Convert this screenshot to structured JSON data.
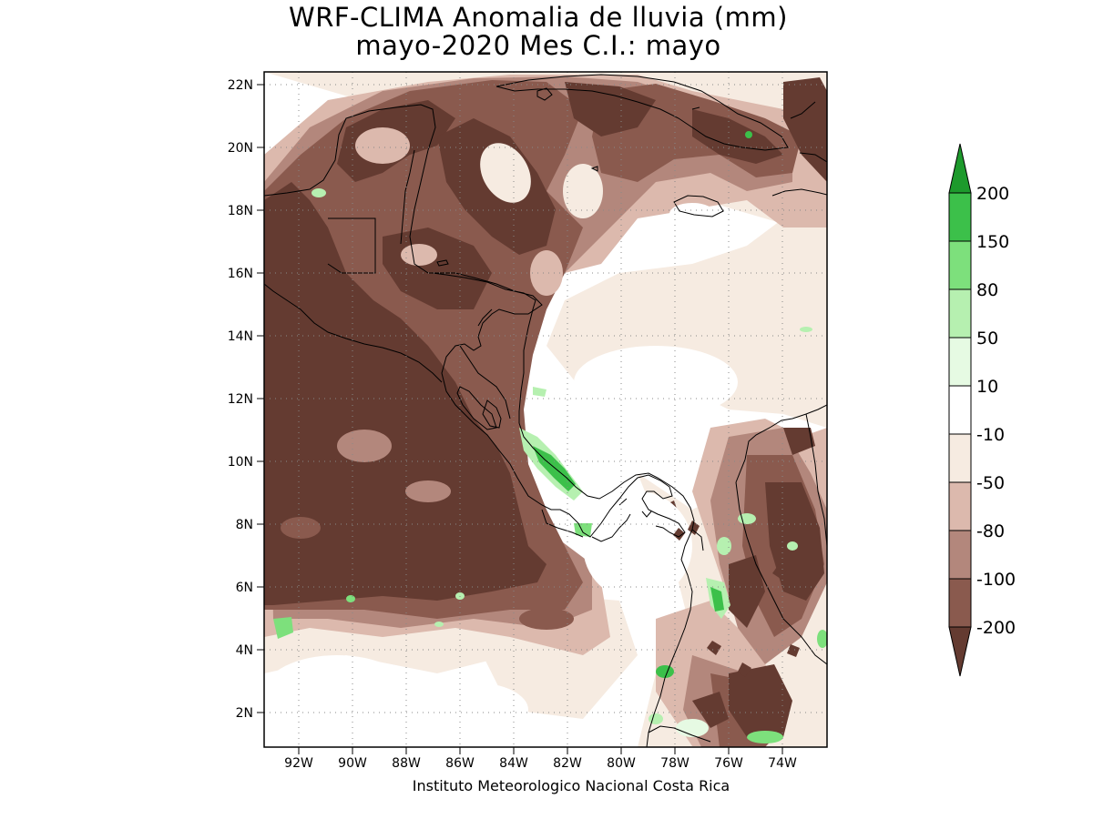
{
  "title": {
    "line1": "WRF-CLIMA Anomalia de lluvia (mm)",
    "line2": "mayo-2020 Mes C.I.: mayo"
  },
  "credit": "Instituto Meteorologico Nacional Costa Rica",
  "axes": {
    "lon_labels": [
      "92W",
      "90W",
      "88W",
      "86W",
      "84W",
      "82W",
      "80W",
      "78W",
      "76W",
      "74W"
    ],
    "lat_labels": [
      "22N",
      "20N",
      "18N",
      "16N",
      "14N",
      "12N",
      "10N",
      "8N",
      "6N",
      "4N",
      "2N"
    ]
  },
  "colorbar": {
    "labels": [
      "200",
      "150",
      "80",
      "50",
      "10",
      "-10",
      "-50",
      "-80",
      "-100",
      "-200"
    ],
    "colors": [
      "#1d9a2c",
      "#3cc04a",
      "#7de07c",
      "#b6f0b0",
      "#e6fae3",
      "#ffffff",
      "#f6ebe1",
      "#dcb9ad",
      "#b3877c",
      "#8a5a4e",
      "#643b31"
    ]
  },
  "palette": {
    "strong_dry": "#643b31",
    "dry": "#8a5a4e",
    "moderate_dry": "#b3877c",
    "light_dry": "#dcb9ad",
    "slight_dry": "#f6ebe1",
    "neutral": "#ffffff",
    "slight_wet": "#e6fae3",
    "wet": "#b6f0b0",
    "very_wet": "#7de07c",
    "strong_wet": "#3cc04a"
  }
}
